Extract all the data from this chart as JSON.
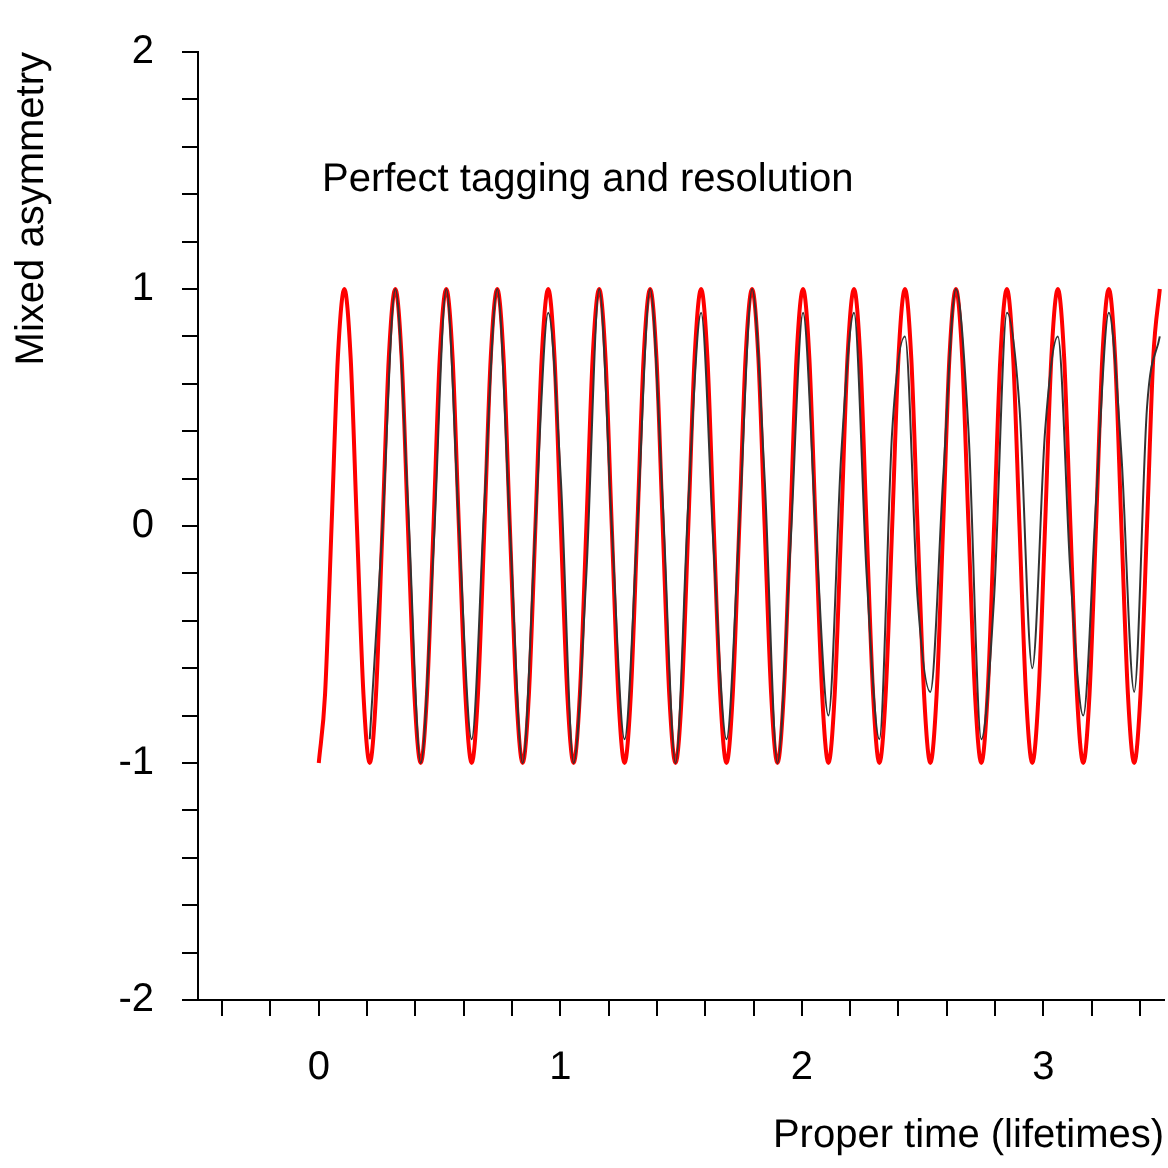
{
  "chart_data": {
    "type": "line",
    "xlabel": "Proper time (lifetimes)",
    "ylabel": "Mixed asymmetry",
    "annotations": [
      "Perfect tagging and resolution"
    ],
    "xlim": [
      -0.5,
      3.5
    ],
    "ylim": [
      -2,
      2
    ],
    "xticks": [
      {
        "value": -0.4,
        "label": null
      },
      {
        "value": -0.2,
        "label": null
      },
      0,
      {
        "value": 0.2,
        "label": null
      },
      {
        "value": 0.4,
        "label": null
      },
      {
        "value": 0.6,
        "label": null
      },
      {
        "value": 0.8,
        "label": null
      },
      1,
      {
        "value": 1.2,
        "label": null
      },
      {
        "value": 1.4,
        "label": null
      },
      {
        "value": 1.6,
        "label": null
      },
      {
        "value": 1.8,
        "label": null
      },
      2,
      {
        "value": 2.2,
        "label": null
      },
      {
        "value": 2.4,
        "label": null
      },
      {
        "value": 2.6,
        "label": null
      },
      {
        "value": 2.8,
        "label": null
      },
      3,
      {
        "value": 3.2,
        "label": null
      },
      {
        "value": 3.4,
        "label": null
      }
    ],
    "yticks": [
      -2,
      {
        "value": -1.8,
        "label": null
      },
      {
        "value": -1.6,
        "label": null
      },
      {
        "value": -1.4,
        "label": null
      },
      {
        "value": -1.2,
        "label": null
      },
      -1,
      {
        "value": -0.8,
        "label": null
      },
      {
        "value": -0.6,
        "label": null
      },
      {
        "value": -0.4,
        "label": null
      },
      {
        "value": -0.2,
        "label": null
      },
      0,
      {
        "value": 0.2,
        "label": null
      },
      {
        "value": 0.4,
        "label": null
      },
      {
        "value": 0.6,
        "label": null
      },
      {
        "value": 0.8,
        "label": null
      },
      1,
      {
        "value": 1.2,
        "label": null
      },
      {
        "value": 1.4,
        "label": null
      },
      {
        "value": 1.6,
        "label": null
      },
      {
        "value": 1.8,
        "label": null
      },
      2
    ],
    "grid": false,
    "legend": false,
    "marker": "none",
    "series": [
      {
        "color": "#333333",
        "x": [
          0.211,
          0.264,
          0.317,
          0.369,
          0.422,
          0.475,
          0.528,
          0.58,
          0.633,
          0.686,
          0.739,
          0.791,
          0.844,
          0.897,
          0.95,
          1.002,
          1.055,
          1.108,
          1.161,
          1.213,
          1.266,
          1.319,
          1.372,
          1.424,
          1.477,
          1.53,
          1.583,
          1.635,
          1.688,
          1.741,
          1.794,
          1.846,
          1.899,
          1.952,
          2.005,
          2.057,
          2.11,
          2.163,
          2.216,
          2.268,
          2.321,
          2.374,
          2.427,
          2.479,
          2.532,
          2.585,
          2.638,
          2.69,
          2.743,
          2.796,
          2.849,
          2.901,
          2.954,
          3.007,
          3.06,
          3.112,
          3.165,
          3.218,
          3.271,
          3.323,
          3.376,
          3.429,
          3.482
        ],
        "values": [
          -0.9,
          0,
          1,
          0.1,
          -1,
          -0.1,
          1,
          0,
          -0.9,
          0.1,
          1,
          0,
          -1,
          0,
          0.9,
          0.2,
          -1,
          -0.2,
          1,
          0,
          -0.9,
          0,
          1,
          0.1,
          -1,
          0.1,
          0.9,
          -0.1,
          -0.9,
          0,
          1,
          0.2,
          -1,
          -0.1,
          0.9,
          0,
          -0.8,
          0.3,
          0.9,
          -0.2,
          -0.9,
          0.4,
          0.8,
          -0.3,
          -0.7,
          0.2,
          1,
          0.4,
          -0.9,
          -0.3,
          0.9,
          0.5,
          -0.6,
          0.4,
          0.8,
          -0.2,
          -0.8,
          0.1,
          0.9,
          0.3,
          -0.7,
          0.5,
          0.8
        ]
      },
      {
        "color": "#ff0000",
        "x": [
          0,
          0.026,
          0.053,
          0.079,
          0.106,
          0.132,
          0.158,
          0.185,
          0.211,
          0.237,
          0.264,
          0.29,
          0.317,
          0.343,
          0.369,
          0.396,
          0.422,
          0.448,
          0.475,
          0.501,
          0.528,
          0.554,
          0.58,
          0.607,
          0.633,
          0.659,
          0.686,
          0.712,
          0.739,
          0.765,
          0.791,
          0.818,
          0.844,
          0.87,
          0.897,
          0.923,
          0.95,
          0.976,
          1.002,
          1.029,
          1.055,
          1.081,
          1.108,
          1.134,
          1.161,
          1.187,
          1.213,
          1.24,
          1.266,
          1.292,
          1.319,
          1.345,
          1.372,
          1.398,
          1.424,
          1.451,
          1.477,
          1.503,
          1.53,
          1.556,
          1.583,
          1.609,
          1.635,
          1.662,
          1.688,
          1.714,
          1.741,
          1.767,
          1.794,
          1.82,
          1.846,
          1.873,
          1.899,
          1.925,
          1.952,
          1.978,
          2.005,
          2.031,
          2.057,
          2.084,
          2.11,
          2.136,
          2.163,
          2.189,
          2.216,
          2.242,
          2.268,
          2.295,
          2.321,
          2.347,
          2.374,
          2.4,
          2.427,
          2.453,
          2.479,
          2.506,
          2.532,
          2.558,
          2.585,
          2.611,
          2.638,
          2.664,
          2.69,
          2.717,
          2.743,
          2.769,
          2.796,
          2.822,
          2.849,
          2.875,
          2.901,
          2.928,
          2.954,
          2.98,
          3.007,
          3.033,
          3.06,
          3.086,
          3.112,
          3.139,
          3.165,
          3.191,
          3.218,
          3.244,
          3.271,
          3.297,
          3.323,
          3.35,
          3.376,
          3.402,
          3.429,
          3.455,
          3.482
        ],
        "values": [
          -1,
          -0.71,
          0,
          0.71,
          1,
          0.71,
          0,
          -0.71,
          -1,
          -0.71,
          0,
          0.71,
          1,
          0.71,
          0,
          -0.71,
          -1,
          -0.71,
          0,
          0.71,
          1,
          0.71,
          0,
          -0.71,
          -1,
          -0.71,
          0,
          0.71,
          1,
          0.71,
          0,
          -0.71,
          -1,
          -0.71,
          0,
          0.71,
          1,
          0.71,
          0,
          -0.71,
          -1,
          -0.71,
          0,
          0.71,
          1,
          0.71,
          0,
          -0.71,
          -1,
          -0.71,
          0,
          0.71,
          1,
          0.71,
          0,
          -0.71,
          -1,
          -0.71,
          0,
          0.71,
          1,
          0.71,
          0,
          -0.71,
          -1,
          -0.71,
          0,
          0.71,
          1,
          0.71,
          0,
          -0.71,
          -1,
          -0.71,
          0,
          0.71,
          1,
          0.71,
          0,
          -0.71,
          -1,
          -0.71,
          0,
          0.71,
          1,
          0.71,
          0,
          -0.71,
          -1,
          -0.71,
          0,
          0.71,
          1,
          0.71,
          0,
          -0.71,
          -1,
          -0.71,
          0,
          0.71,
          1,
          0.71,
          0,
          -0.71,
          -1,
          -0.71,
          0,
          0.71,
          1,
          0.71,
          0,
          -0.71,
          -1,
          -0.71,
          0,
          0.71,
          1,
          0.71,
          0,
          -0.71,
          -1,
          -0.71,
          0,
          0.71,
          1,
          0.71,
          0,
          -0.71,
          -1,
          -0.71,
          0,
          0.71,
          1
        ]
      }
    ]
  }
}
